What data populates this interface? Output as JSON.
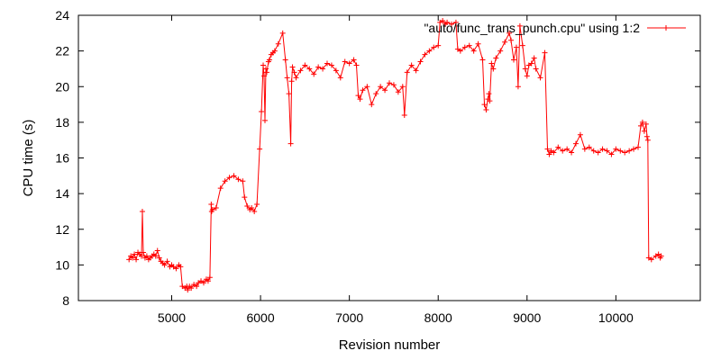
{
  "chart_data": {
    "type": "line",
    "xlabel": "Revision number",
    "ylabel": "CPU time (s)",
    "xlim": [
      3950,
      10950
    ],
    "ylim": [
      8,
      24
    ],
    "xticks": [
      "5000",
      "6000",
      "7000",
      "8000",
      "9000",
      "10000"
    ],
    "yticks": [
      "8",
      "10",
      "12",
      "14",
      "16",
      "18",
      "20",
      "22",
      "24"
    ],
    "grid": false,
    "legend_position": "top-right",
    "marker": "plus",
    "series": [
      {
        "name": "\"auto/func_trans_punch.cpu\" using 1:2",
        "color": "#ff0000",
        "x": [
          4520,
          4540,
          4560,
          4580,
          4600,
          4620,
          4640,
          4660,
          4670,
          4680,
          4700,
          4720,
          4740,
          4760,
          4780,
          4800,
          4820,
          4840,
          4860,
          4880,
          4900,
          4920,
          4950,
          4980,
          5000,
          5020,
          5050,
          5080,
          5100,
          5120,
          5150,
          5170,
          5180,
          5200,
          5220,
          5250,
          5280,
          5300,
          5330,
          5360,
          5390,
          5410,
          5430,
          5445,
          5450,
          5460,
          5500,
          5550,
          5600,
          5650,
          5700,
          5750,
          5800,
          5820,
          5850,
          5880,
          5900,
          5930,
          5960,
          5990,
          6010,
          6030,
          6040,
          6050,
          6060,
          6070,
          6090,
          6100,
          6120,
          6140,
          6160,
          6200,
          6250,
          6280,
          6300,
          6320,
          6340,
          6350,
          6360,
          6380,
          6400,
          6450,
          6500,
          6550,
          6600,
          6650,
          6700,
          6750,
          6800,
          6850,
          6900,
          6950,
          7000,
          7050,
          7080,
          7100,
          7120,
          7150,
          7200,
          7250,
          7300,
          7350,
          7400,
          7450,
          7500,
          7550,
          7600,
          7620,
          7650,
          7700,
          7750,
          7800,
          7850,
          7900,
          7950,
          8000,
          8020,
          8050,
          8080,
          8100,
          8150,
          8200,
          8220,
          8250,
          8300,
          8350,
          8400,
          8450,
          8500,
          8520,
          8540,
          8560,
          8570,
          8580,
          8600,
          8620,
          8650,
          8700,
          8750,
          8800,
          8820,
          8850,
          8880,
          8900,
          8920,
          8950,
          8980,
          9000,
          9020,
          9050,
          9080,
          9100,
          9150,
          9200,
          9230,
          9250,
          9270,
          9300,
          9350,
          9400,
          9450,
          9500,
          9550,
          9600,
          9650,
          9700,
          9750,
          9800,
          9850,
          9900,
          9950,
          10000,
          10050,
          10100,
          10150,
          10200,
          10250,
          10280,
          10300,
          10320,
          10340,
          10350,
          10360,
          10370,
          10400,
          10450,
          10480,
          10500,
          10510
        ],
        "y": [
          10.3,
          10.5,
          10.4,
          10.6,
          10.3,
          10.7,
          10.6,
          10.5,
          13.0,
          10.7,
          10.4,
          10.5,
          10.3,
          10.4,
          10.5,
          10.6,
          10.5,
          10.8,
          10.4,
          10.2,
          10.1,
          10.0,
          10.2,
          9.9,
          10.0,
          9.9,
          9.8,
          10.0,
          9.9,
          8.8,
          8.7,
          8.8,
          8.6,
          8.8,
          8.7,
          8.9,
          8.8,
          9.0,
          9.1,
          9.0,
          9.2,
          9.1,
          9.3,
          13.4,
          13.0,
          13.1,
          13.2,
          14.3,
          14.7,
          14.9,
          15.0,
          14.8,
          14.7,
          13.8,
          13.3,
          13.1,
          13.2,
          13.0,
          13.4,
          16.5,
          18.6,
          21.2,
          20.6,
          18.1,
          21.0,
          20.8,
          21.4,
          21.5,
          21.8,
          21.9,
          22.0,
          22.4,
          23.0,
          21.5,
          20.5,
          19.6,
          16.8,
          20.3,
          21.1,
          20.8,
          20.5,
          20.9,
          21.2,
          21.0,
          20.7,
          21.1,
          21.0,
          21.3,
          21.2,
          20.9,
          20.5,
          21.4,
          21.3,
          21.5,
          21.2,
          19.5,
          19.3,
          19.8,
          20.0,
          19.0,
          19.6,
          20.0,
          19.8,
          20.2,
          20.1,
          19.7,
          20.0,
          18.4,
          20.8,
          21.2,
          20.9,
          21.4,
          21.8,
          22.0,
          22.2,
          22.3,
          23.6,
          23.7,
          23.5,
          23.6,
          23.5,
          23.6,
          22.1,
          22.0,
          22.2,
          22.3,
          22.0,
          22.4,
          21.5,
          19.0,
          18.7,
          19.3,
          19.6,
          19.2,
          21.3,
          21.0,
          21.6,
          22.0,
          22.5,
          23.0,
          22.6,
          21.5,
          22.2,
          20.0,
          23.4,
          22.3,
          21.0,
          20.6,
          21.2,
          21.3,
          21.6,
          21.0,
          20.5,
          21.9,
          16.5,
          16.2,
          16.4,
          16.3,
          16.6,
          16.4,
          16.5,
          16.3,
          16.8,
          17.3,
          16.5,
          16.6,
          16.4,
          16.3,
          16.5,
          16.4,
          16.2,
          16.5,
          16.4,
          16.3,
          16.4,
          16.5,
          16.6,
          17.8,
          18.0,
          17.5,
          17.9,
          17.2,
          17.0,
          10.4,
          10.3,
          10.5,
          10.6,
          10.4,
          10.5
        ]
      }
    ]
  }
}
